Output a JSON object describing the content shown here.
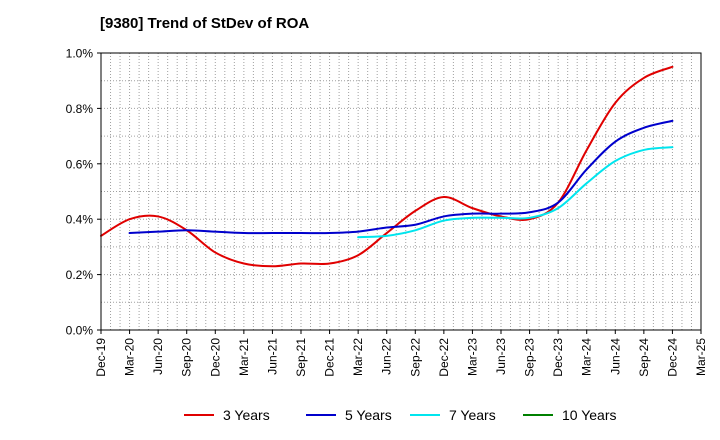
{
  "chart_data": {
    "type": "line",
    "title": "[9380]  Trend of StDev of ROA",
    "xlabel": "",
    "ylabel": "",
    "categories": [
      "Dec-19",
      "Mar-20",
      "Jun-20",
      "Sep-20",
      "Dec-20",
      "Mar-21",
      "Jun-21",
      "Sep-21",
      "Dec-21",
      "Mar-22",
      "Jun-22",
      "Sep-22",
      "Dec-22",
      "Mar-23",
      "Jun-23",
      "Sep-23",
      "Dec-23",
      "Mar-24",
      "Jun-24",
      "Sep-24",
      "Dec-24",
      "Mar-25"
    ],
    "ylim": [
      0,
      1.0
    ],
    "yticks": [
      "0.0%",
      "0.2%",
      "0.4%",
      "0.6%",
      "0.8%",
      "1.0%"
    ],
    "grid": true,
    "legend_position": "bottom",
    "series": [
      {
        "name": "3 Years",
        "color": "#e00000",
        "values": [
          0.34,
          0.4,
          0.41,
          0.36,
          0.28,
          0.24,
          0.23,
          0.24,
          0.24,
          0.27,
          0.35,
          0.43,
          0.48,
          0.44,
          0.41,
          0.4,
          0.46,
          0.65,
          0.82,
          0.91,
          0.95,
          null
        ]
      },
      {
        "name": "5 Years",
        "color": "#0000cc",
        "values": [
          null,
          0.35,
          0.355,
          0.36,
          0.355,
          0.35,
          0.35,
          0.35,
          0.35,
          0.355,
          0.37,
          0.38,
          0.41,
          0.42,
          0.42,
          0.425,
          0.46,
          0.58,
          0.68,
          0.73,
          0.755,
          null
        ]
      },
      {
        "name": "7 Years",
        "color": "#00e5ee",
        "values": [
          null,
          null,
          null,
          null,
          null,
          null,
          null,
          null,
          null,
          0.335,
          0.34,
          0.36,
          0.395,
          0.405,
          0.405,
          0.405,
          0.44,
          0.53,
          0.61,
          0.65,
          0.66,
          null
        ]
      },
      {
        "name": "10 Years",
        "color": "#008000",
        "values": [
          null,
          null,
          null,
          null,
          null,
          null,
          null,
          null,
          null,
          null,
          null,
          null,
          null,
          null,
          null,
          null,
          null,
          null,
          null,
          null,
          null,
          null
        ]
      }
    ]
  }
}
